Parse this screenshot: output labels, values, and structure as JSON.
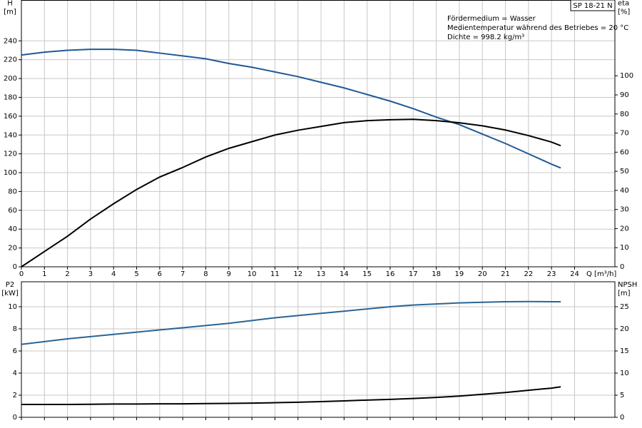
{
  "chart_data": [
    {
      "type": "line",
      "title": "SP 18-21 N",
      "annotations": [
        "Fördermedium = Wasser",
        "Medientemperatur während des Betriebes = 20 °C",
        "Dichte = 998.2 kg/m³"
      ],
      "xlabel": "Q [m³/h]",
      "ylabel": "H",
      "yunit": "[m]",
      "y2label": "eta",
      "y2unit": "[%]",
      "x": [
        0,
        1,
        2,
        3,
        4,
        5,
        6,
        7,
        8,
        9,
        10,
        11,
        12,
        13,
        14,
        15,
        16,
        17,
        18,
        19,
        20,
        21,
        22,
        23,
        23.4
      ],
      "series": [
        {
          "name": "H",
          "color": "#1f5a96",
          "values": [
            225,
            228,
            230,
            231,
            231,
            230,
            227,
            224,
            221,
            216,
            212,
            207,
            202,
            196,
            190,
            183,
            176,
            168,
            159,
            151,
            141,
            131,
            120,
            109,
            105
          ]
        },
        {
          "name": "eta",
          "color": "#000000",
          "axis": "y2",
          "values": [
            0,
            8,
            16,
            25,
            33,
            40.5,
            47,
            52,
            57.5,
            62,
            65.5,
            69,
            71.5,
            73.5,
            75.5,
            76.5,
            77,
            77.2,
            76.5,
            75.4,
            73.8,
            71.6,
            68.7,
            65.3,
            63.4
          ]
        }
      ],
      "xlim": [
        0,
        25.75
      ],
      "xticks": [
        0,
        1,
        2,
        3,
        4,
        5,
        6,
        7,
        8,
        9,
        10,
        11,
        12,
        13,
        14,
        15,
        16,
        17,
        18,
        19,
        20,
        21,
        22,
        23,
        24
      ],
      "ylim": [
        0,
        280
      ],
      "yticks": [
        0,
        20,
        40,
        60,
        80,
        100,
        120,
        140,
        160,
        180,
        200,
        220,
        240
      ],
      "y2lim": [
        0,
        138
      ],
      "y2ticks": [
        0,
        10,
        20,
        30,
        40,
        50,
        60,
        70,
        80,
        90,
        100
      ],
      "grid": true
    },
    {
      "type": "line",
      "ylabel": "P2",
      "yunit": "[kW]",
      "y2label": "NPSH",
      "y2unit": "[m]",
      "x": [
        0,
        1,
        2,
        3,
        4,
        5,
        6,
        7,
        8,
        9,
        10,
        11,
        12,
        13,
        14,
        15,
        16,
        17,
        18,
        19,
        20,
        21,
        22,
        23,
        23.4
      ],
      "series": [
        {
          "name": "P2",
          "color": "#2a6496",
          "values": [
            6.6,
            6.85,
            7.1,
            7.3,
            7.5,
            7.7,
            7.9,
            8.1,
            8.3,
            8.5,
            8.75,
            9.0,
            9.2,
            9.4,
            9.6,
            9.8,
            10.0,
            10.15,
            10.25,
            10.35,
            10.4,
            10.45,
            10.47,
            10.45,
            10.45
          ]
        },
        {
          "name": "NPSH",
          "color": "#000000",
          "axis": "y2",
          "values": [
            2.9,
            2.9,
            2.9,
            2.95,
            3.0,
            3.0,
            3.05,
            3.05,
            3.1,
            3.15,
            3.2,
            3.3,
            3.4,
            3.55,
            3.7,
            3.9,
            4.05,
            4.25,
            4.5,
            4.8,
            5.2,
            5.6,
            6.1,
            6.6,
            6.9
          ]
        }
      ],
      "xlim": [
        0,
        25.75
      ],
      "ylim": [
        0,
        12
      ],
      "yticks": [
        0,
        2,
        4,
        6,
        8,
        10
      ],
      "y2lim": [
        0,
        30
      ],
      "y2ticks": [
        0,
        5,
        10,
        15,
        20,
        25
      ],
      "grid": true
    }
  ]
}
